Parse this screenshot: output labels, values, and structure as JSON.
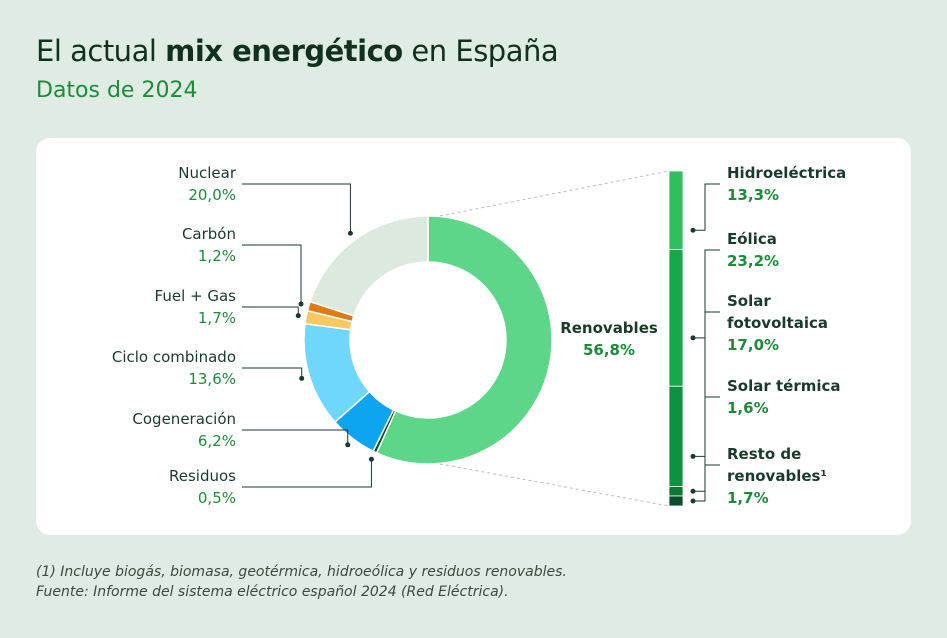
{
  "chart_data": {
    "type": "donut",
    "title": [
      "El actual ",
      "mix energético",
      " en España"
    ],
    "subtitle": "Datos de 2024",
    "categories": [
      "Renovables",
      "Residuos",
      "Cogeneración",
      "Ciclo combinado",
      "Fuel + Gas",
      "Carbón",
      "Nuclear"
    ],
    "values": [
      56.8,
      0.5,
      6.2,
      13.6,
      1.7,
      1.2,
      20.0
    ],
    "value_labels": [
      "56,8%",
      "0,5%",
      "6,2%",
      "13,6%",
      "1,7%",
      "1,2%",
      "20,0%"
    ],
    "colors": [
      "#5dd68a",
      "#0b4d2a",
      "#0ea5f0",
      "#6fd7fb",
      "#f7c860",
      "#e07b12",
      "#dbe9df"
    ],
    "breakdown": {
      "type": "stacked-bar",
      "categories": [
        "Hidroeléctrica",
        "Eólica",
        "Solar fotovoltaica",
        "Solar térmica",
        "Resto de renovables¹"
      ],
      "values": [
        13.3,
        23.2,
        17.0,
        1.6,
        1.7
      ],
      "value_labels": [
        "13,3%",
        "23,2%",
        "17,0%",
        "1,6%",
        "1,7%"
      ],
      "colors": [
        "#2fbf5d",
        "#16a84b",
        "#0e923f",
        "#0a7a33",
        "#0b4d2a"
      ]
    },
    "notes": [
      "(1) Incluye biogás, biomasa, geotérmica, hidroeólica y residuos renovables.",
      "Fuente: Informe del sistema eléctrico español 2024 (Red Eléctrica)."
    ]
  }
}
